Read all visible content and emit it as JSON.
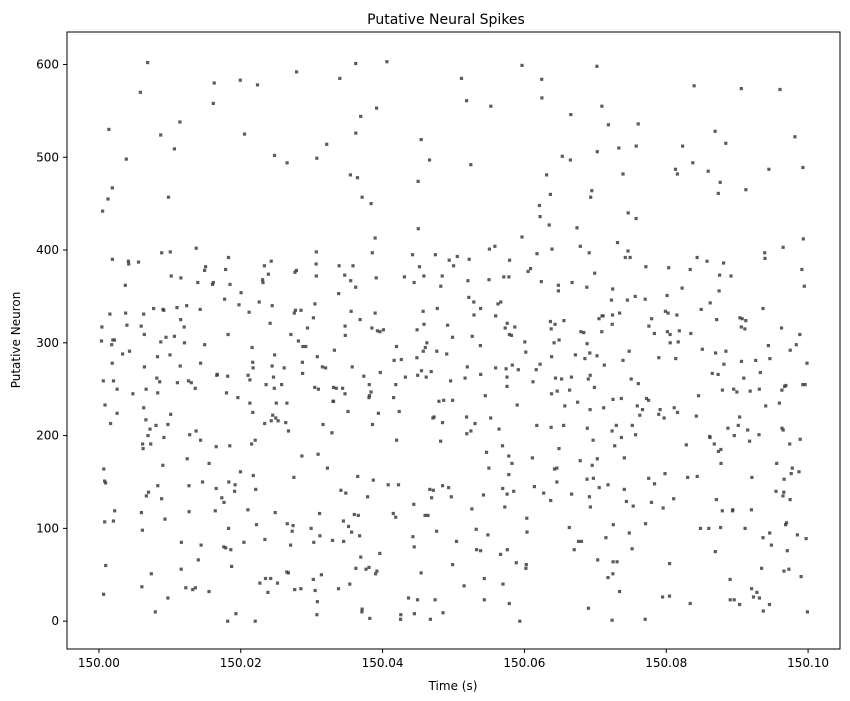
{
  "chart_data": {
    "type": "scatter",
    "title": "Putative Neural Spikes",
    "xlabel": "Time (s)",
    "ylabel": "Putative Neuron",
    "xlim": [
      149.9955,
      150.1045
    ],
    "ylim": [
      -30,
      635
    ],
    "xticks": [
      150.0,
      150.02,
      150.04,
      150.06,
      150.08,
      150.1
    ],
    "xtick_labels": [
      "150.00",
      "150.02",
      "150.04",
      "150.06",
      "150.08",
      "150.10"
    ],
    "yticks": [
      0,
      100,
      200,
      300,
      400,
      500,
      600
    ],
    "ytick_labels": [
      "0",
      "100",
      "200",
      "300",
      "400",
      "500",
      "600"
    ],
    "grid": false,
    "marker_color": "#404040",
    "spike_count": 780,
    "seed": 12345
  }
}
